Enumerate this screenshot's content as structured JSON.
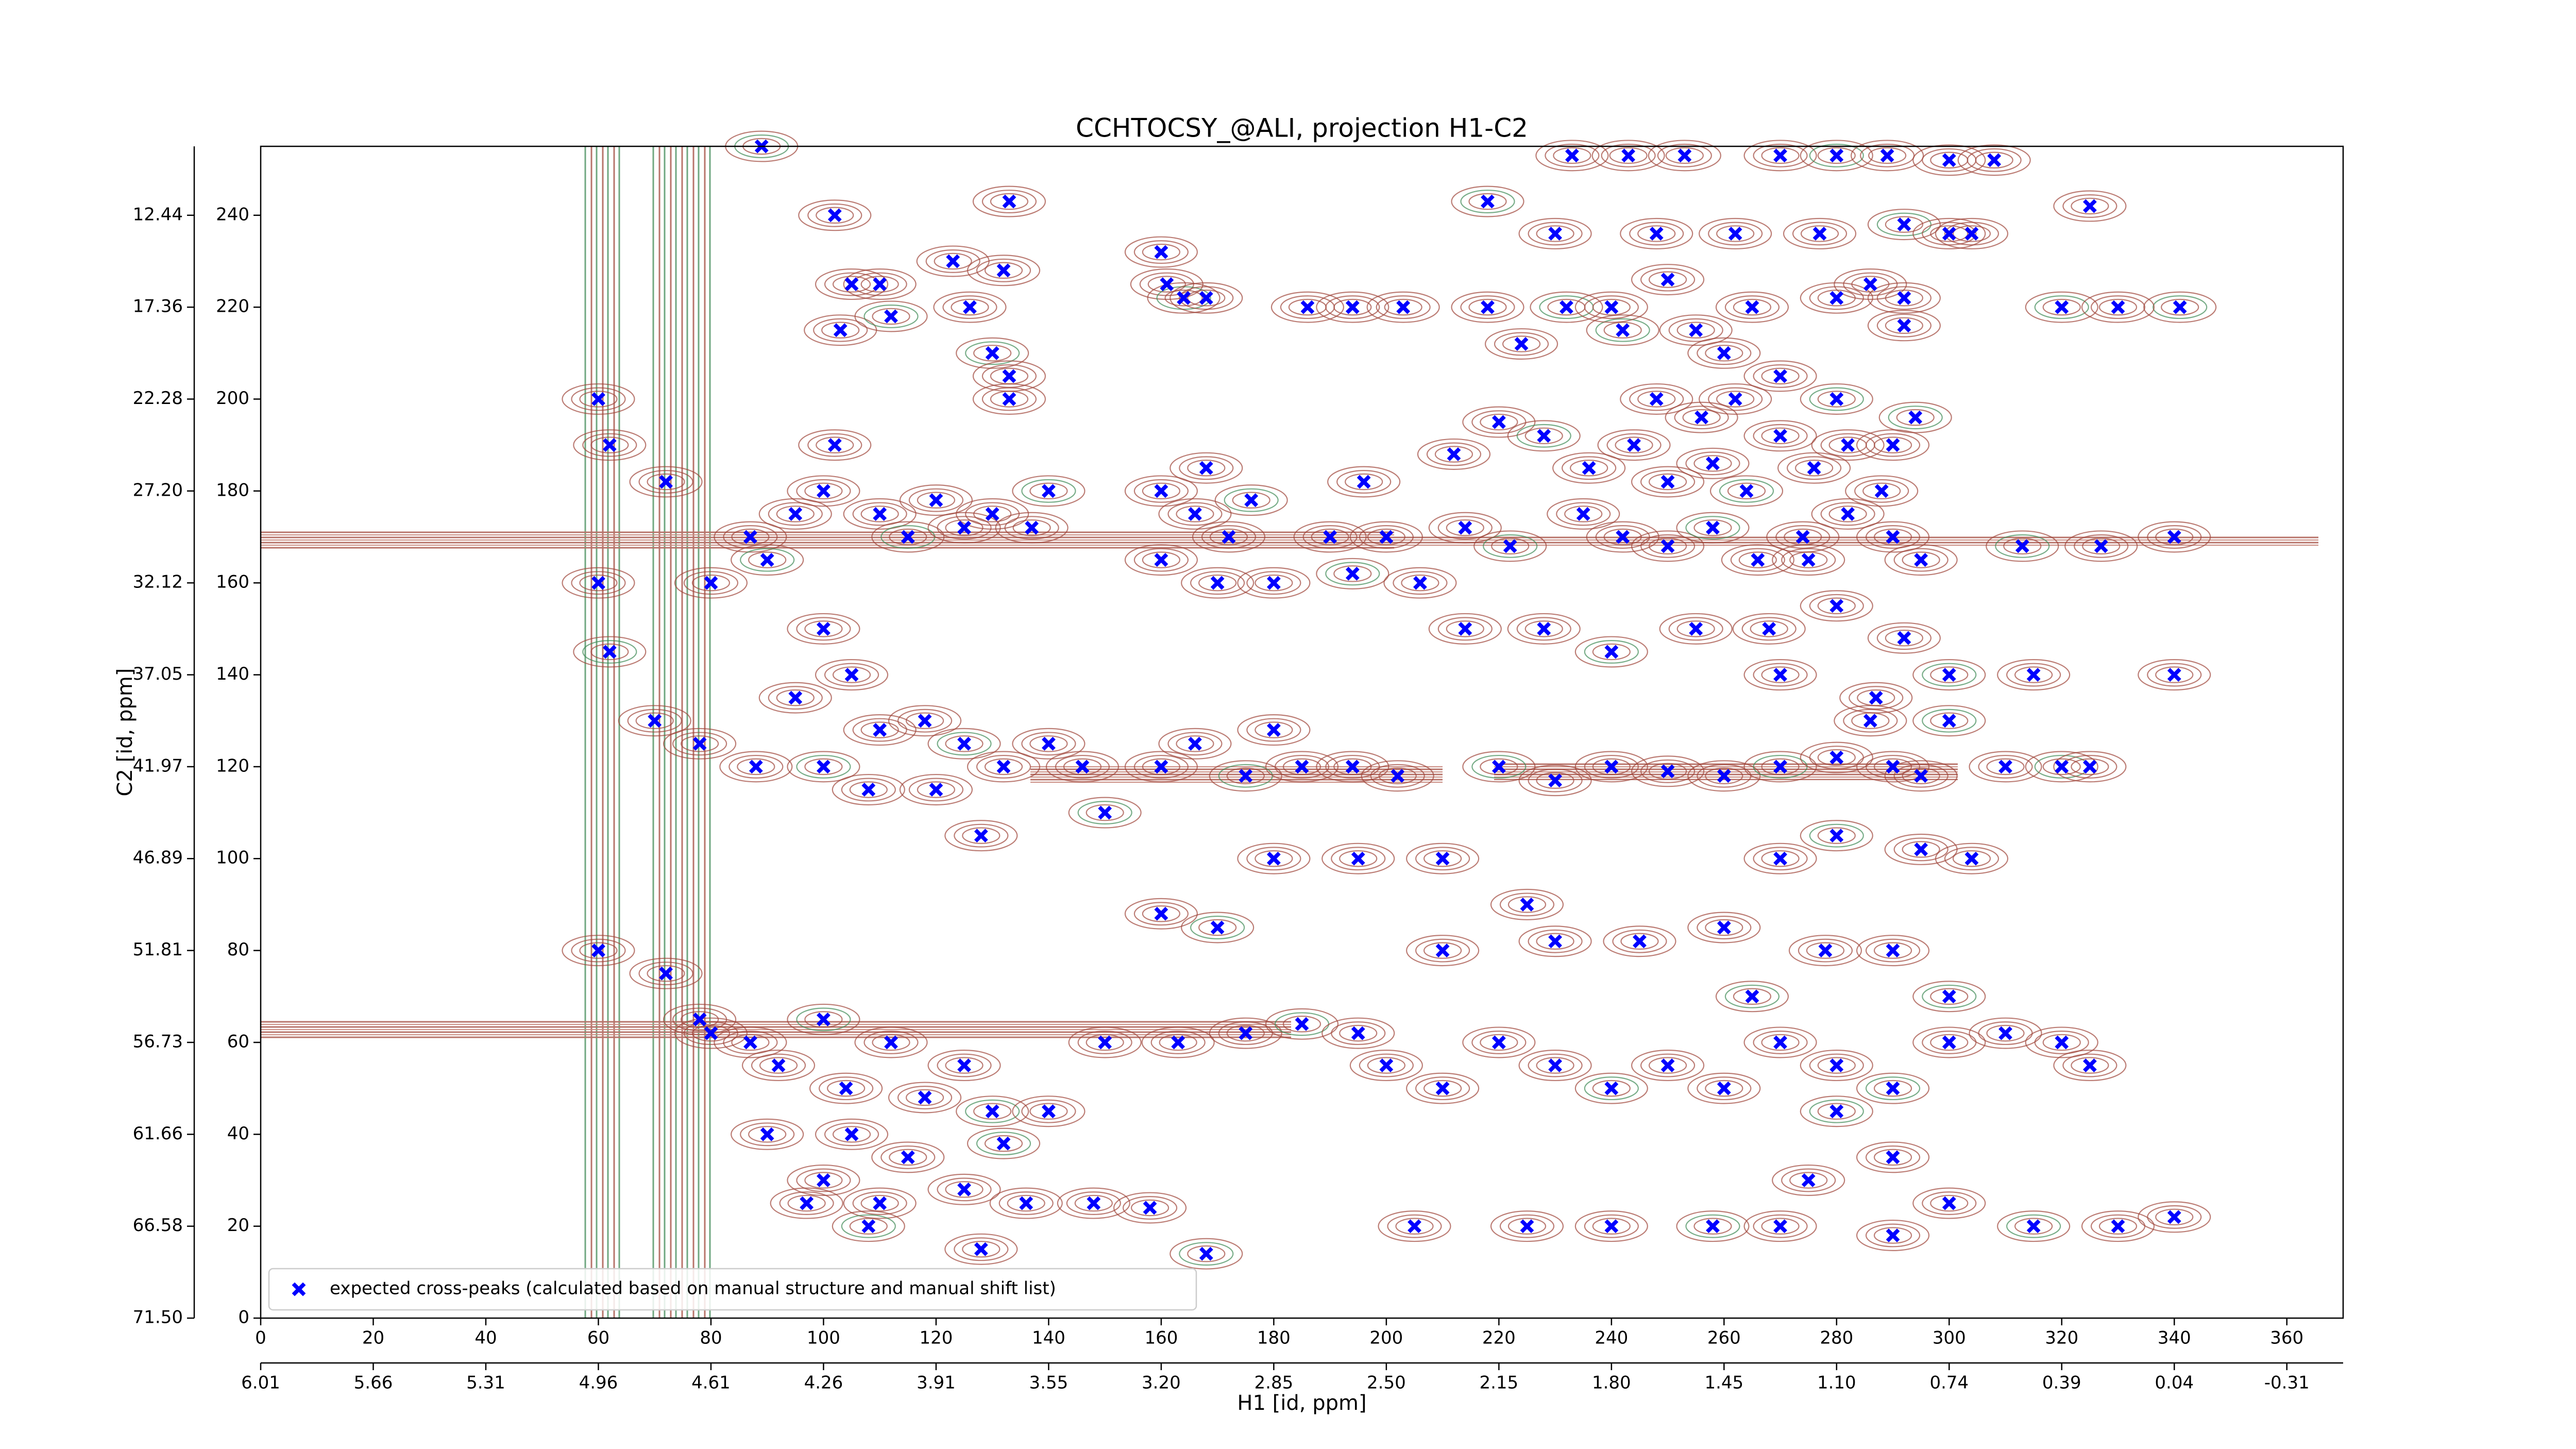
{
  "chart_data": {
    "type": "scatter",
    "title": "CCHTOCSY_@ALI, projection H1-C2",
    "xlabel": "H1 [id, ppm]",
    "ylabel": "C2 [id, ppm]",
    "xlim": [
      0,
      370
    ],
    "ylim": [
      0,
      255
    ],
    "xticks": [
      0,
      20,
      40,
      60,
      80,
      100,
      120,
      140,
      160,
      180,
      200,
      220,
      240,
      260,
      280,
      300,
      320,
      340,
      360
    ],
    "yticks": [
      0,
      20,
      40,
      60,
      80,
      100,
      120,
      140,
      160,
      180,
      200,
      220,
      240
    ],
    "x2ticks": [
      {
        "value": 0,
        "label": "6.01"
      },
      {
        "value": 20,
        "label": "5.66"
      },
      {
        "value": 40,
        "label": "5.31"
      },
      {
        "value": 60,
        "label": "4.96"
      },
      {
        "value": 80,
        "label": "4.61"
      },
      {
        "value": 100,
        "label": "4.26"
      },
      {
        "value": 120,
        "label": "3.91"
      },
      {
        "value": 140,
        "label": "3.55"
      },
      {
        "value": 160,
        "label": "3.20"
      },
      {
        "value": 180,
        "label": "2.85"
      },
      {
        "value": 200,
        "label": "2.50"
      },
      {
        "value": 220,
        "label": "2.15"
      },
      {
        "value": 240,
        "label": "1.80"
      },
      {
        "value": 260,
        "label": "1.45"
      },
      {
        "value": 280,
        "label": "1.10"
      },
      {
        "value": 300,
        "label": "0.74"
      },
      {
        "value": 320,
        "label": "0.39"
      },
      {
        "value": 340,
        "label": "0.04"
      },
      {
        "value": 360,
        "label": "-0.31"
      }
    ],
    "y2ticks": [
      {
        "value": 0,
        "label": "71.50"
      },
      {
        "value": 20,
        "label": "66.58"
      },
      {
        "value": 40,
        "label": "61.66"
      },
      {
        "value": 60,
        "label": "56.73"
      },
      {
        "value": 80,
        "label": "51.81"
      },
      {
        "value": 100,
        "label": "46.89"
      },
      {
        "value": 120,
        "label": "41.97"
      },
      {
        "value": 140,
        "label": "37.05"
      },
      {
        "value": 160,
        "label": "32.12"
      },
      {
        "value": 180,
        "label": "27.20"
      },
      {
        "value": 200,
        "label": "22.28"
      },
      {
        "value": 220,
        "label": "17.36"
      },
      {
        "value": 240,
        "label": "12.44"
      }
    ],
    "legend": "lower left",
    "series": [
      {
        "name": "expected cross-peaks (calculated based on manual structure and manual shift list)",
        "color": "#0000ff",
        "x": [
          89,
          102,
          105,
          103,
          110,
          112,
          123,
          132,
          133,
          126,
          130,
          133,
          133,
          160,
          161,
          164,
          168,
          186,
          194,
          203,
          218,
          233,
          243,
          253,
          270,
          280,
          289,
          300,
          308,
          325,
          341,
          230,
          248,
          262,
          277,
          292,
          265,
          280,
          292,
          286,
          242,
          255,
          250,
          260,
          224,
          232,
          240,
          218,
          300,
          304,
          320,
          330,
          292,
          212,
          220,
          228,
          236,
          244,
          250,
          258,
          264,
          270,
          276,
          282,
          288,
          294,
          248,
          256,
          262,
          270,
          280,
          290,
          235,
          242,
          250,
          258,
          266,
          274,
          282,
          290,
          222,
          214,
          206,
          214,
          228,
          240,
          255,
          268,
          280,
          292,
          300,
          315,
          340,
          275,
          295,
          313,
          327,
          340,
          270,
          287,
          300,
          60,
          62,
          72,
          60,
          62,
          70,
          78,
          80,
          87,
          90,
          95,
          100,
          102,
          110,
          115,
          120,
          125,
          130,
          137,
          140,
          100,
          105,
          110,
          118,
          125,
          132,
          140,
          95,
          88,
          100,
          108,
          120,
          128,
          146,
          150,
          160,
          166,
          172,
          168,
          176,
          160,
          170,
          180,
          190,
          194,
          200,
          196,
          160,
          166,
          175,
          180,
          185,
          194,
          202,
          220,
          230,
          240,
          250,
          260,
          270,
          280,
          290,
          295,
          310,
          320,
          325,
          286,
          87,
          92,
          100,
          104,
          112,
          118,
          125,
          130,
          140,
          150,
          163,
          175,
          185,
          195,
          105,
          115,
          125,
          132,
          100,
          90,
          97,
          110,
          108,
          128,
          136,
          148,
          158,
          168,
          200,
          210,
          220,
          230,
          240,
          250,
          260,
          270,
          280,
          290,
          300,
          310,
          320,
          325,
          280,
          290,
          300,
          275,
          270,
          258,
          240,
          225,
          205,
          290,
          315,
          330,
          340,
          278,
          290,
          300,
          210,
          230,
          245,
          260,
          265,
          180,
          195,
          210,
          270,
          280,
          295,
          304,
          225,
          160,
          170,
          60,
          72,
          78,
          80
        ],
        "values": [
          255,
          240,
          225,
          215,
          225,
          218,
          230,
          228,
          243,
          220,
          210,
          200,
          205,
          232,
          225,
          222,
          222,
          220,
          220,
          220,
          243,
          253,
          253,
          253,
          253,
          253,
          253,
          252,
          252,
          242,
          220,
          236,
          236,
          236,
          236,
          238,
          220,
          222,
          222,
          225,
          215,
          215,
          226,
          210,
          212,
          220,
          220,
          220,
          236,
          236,
          220,
          220,
          216,
          188,
          195,
          192,
          185,
          190,
          182,
          186,
          180,
          192,
          185,
          190,
          180,
          196,
          200,
          196,
          200,
          205,
          200,
          190,
          175,
          170,
          168,
          172,
          165,
          170,
          175,
          170,
          168,
          172,
          160,
          150,
          150,
          145,
          150,
          150,
          155,
          148,
          140,
          140,
          140,
          165,
          165,
          168,
          168,
          170,
          140,
          135,
          130,
          200,
          190,
          182,
          160,
          145,
          130,
          125,
          160,
          170,
          165,
          175,
          180,
          190,
          175,
          170,
          178,
          172,
          175,
          172,
          180,
          150,
          140,
          128,
          130,
          125,
          120,
          125,
          135,
          120,
          120,
          115,
          115,
          105,
          120,
          110,
          180,
          175,
          170,
          185,
          178,
          165,
          160,
          160,
          170,
          162,
          170,
          182,
          120,
          125,
          118,
          128,
          120,
          120,
          118,
          120,
          117,
          120,
          119,
          118,
          120,
          122,
          120,
          118,
          120,
          120,
          120,
          130,
          60,
          55,
          65,
          50,
          60,
          48,
          55,
          45,
          45,
          60,
          60,
          62,
          64,
          62,
          40,
          35,
          28,
          38,
          30,
          40,
          25,
          25,
          20,
          15,
          25,
          25,
          24,
          14,
          55,
          50,
          60,
          55,
          50,
          55,
          50,
          60,
          55,
          50,
          60,
          62,
          60,
          55,
          45,
          35,
          25,
          30,
          20,
          20,
          20,
          20,
          20,
          18,
          20,
          20,
          22,
          80,
          80,
          70,
          80,
          82,
          82,
          85,
          70,
          100,
          100,
          100,
          100,
          105,
          102,
          100,
          90,
          88,
          85,
          80,
          75,
          65,
          62
        ]
      }
    ]
  }
}
